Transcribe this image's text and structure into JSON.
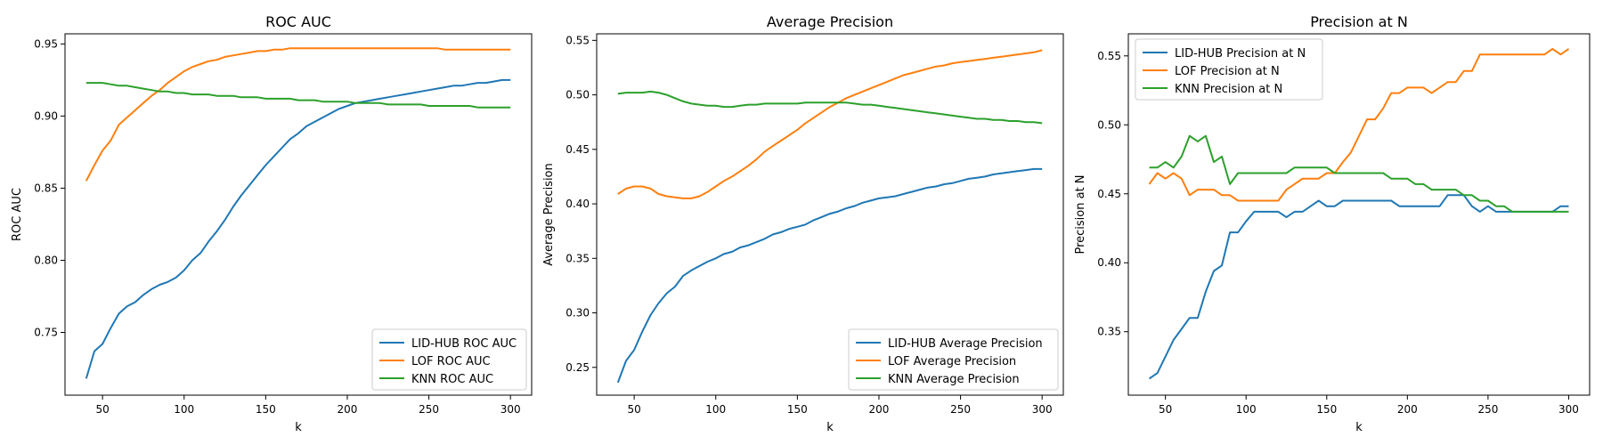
{
  "palette": {
    "lid": "#1f77b4",
    "lof": "#ff7f0e",
    "knn": "#2ca02c"
  },
  "chart_data": [
    {
      "type": "line",
      "title": "ROC AUC",
      "xlabel": "k",
      "ylabel": "ROC AUC",
      "xlim": [
        27,
        313
      ],
      "ylim": [
        0.7065,
        0.957
      ],
      "xticks": [
        50,
        100,
        150,
        200,
        250,
        300
      ],
      "yticks": [
        0.75,
        0.8,
        0.85,
        0.9,
        0.95
      ],
      "tick_format": 2,
      "legend_position": "lower right",
      "x": [
        40,
        45,
        50,
        55,
        60,
        65,
        70,
        75,
        80,
        85,
        90,
        95,
        100,
        105,
        110,
        115,
        120,
        125,
        130,
        135,
        140,
        145,
        150,
        155,
        160,
        165,
        170,
        175,
        180,
        185,
        190,
        195,
        200,
        205,
        210,
        215,
        220,
        225,
        230,
        235,
        240,
        245,
        250,
        255,
        260,
        265,
        270,
        275,
        280,
        285,
        290,
        295,
        300
      ],
      "series": [
        {
          "name": "LID-HUB ROC AUC",
          "color": "lid",
          "values": [
            0.718,
            0.737,
            0.742,
            0.753,
            0.763,
            0.768,
            0.771,
            0.776,
            0.78,
            0.783,
            0.785,
            0.788,
            0.793,
            0.8,
            0.805,
            0.813,
            0.82,
            0.828,
            0.837,
            0.845,
            0.852,
            0.859,
            0.866,
            0.872,
            0.878,
            0.884,
            0.888,
            0.893,
            0.896,
            0.899,
            0.902,
            0.905,
            0.907,
            0.909,
            0.91,
            0.911,
            0.912,
            0.913,
            0.914,
            0.915,
            0.916,
            0.917,
            0.918,
            0.919,
            0.92,
            0.921,
            0.921,
            0.922,
            0.923,
            0.923,
            0.924,
            0.925,
            0.925
          ]
        },
        {
          "name": "LOF ROC AUC",
          "color": "lof",
          "values": [
            0.855,
            0.866,
            0.876,
            0.883,
            0.894,
            0.899,
            0.904,
            0.909,
            0.914,
            0.918,
            0.923,
            0.927,
            0.931,
            0.934,
            0.936,
            0.938,
            0.939,
            0.941,
            0.942,
            0.943,
            0.944,
            0.945,
            0.945,
            0.946,
            0.946,
            0.947,
            0.947,
            0.947,
            0.947,
            0.947,
            0.947,
            0.947,
            0.947,
            0.947,
            0.947,
            0.947,
            0.947,
            0.947,
            0.947,
            0.947,
            0.947,
            0.947,
            0.947,
            0.947,
            0.946,
            0.946,
            0.946,
            0.946,
            0.946,
            0.946,
            0.946,
            0.946,
            0.946
          ]
        },
        {
          "name": "KNN ROC AUC",
          "color": "knn",
          "values": [
            0.923,
            0.923,
            0.923,
            0.922,
            0.921,
            0.921,
            0.92,
            0.919,
            0.918,
            0.917,
            0.917,
            0.916,
            0.916,
            0.915,
            0.915,
            0.915,
            0.914,
            0.914,
            0.914,
            0.913,
            0.913,
            0.913,
            0.912,
            0.912,
            0.912,
            0.912,
            0.911,
            0.911,
            0.911,
            0.91,
            0.91,
            0.91,
            0.91,
            0.909,
            0.909,
            0.909,
            0.909,
            0.908,
            0.908,
            0.908,
            0.908,
            0.908,
            0.907,
            0.907,
            0.907,
            0.907,
            0.907,
            0.907,
            0.906,
            0.906,
            0.906,
            0.906,
            0.906
          ]
        }
      ]
    },
    {
      "type": "line",
      "title": "Average Precision",
      "xlabel": "k",
      "ylabel": "Average Precision",
      "xlim": [
        27,
        313
      ],
      "ylim": [
        0.2245,
        0.556
      ],
      "xticks": [
        50,
        100,
        150,
        200,
        250,
        300
      ],
      "yticks": [
        0.25,
        0.3,
        0.35,
        0.4,
        0.45,
        0.5,
        0.55
      ],
      "tick_format": 2,
      "legend_position": "lower right",
      "x": [
        40,
        45,
        50,
        55,
        60,
        65,
        70,
        75,
        80,
        85,
        90,
        95,
        100,
        105,
        110,
        115,
        120,
        125,
        130,
        135,
        140,
        145,
        150,
        155,
        160,
        165,
        170,
        175,
        180,
        185,
        190,
        195,
        200,
        205,
        210,
        215,
        220,
        225,
        230,
        235,
        240,
        245,
        250,
        255,
        260,
        265,
        270,
        275,
        280,
        285,
        290,
        295,
        300
      ],
      "series": [
        {
          "name": "LID-HUB Average Precision",
          "color": "lid",
          "values": [
            0.236,
            0.256,
            0.266,
            0.283,
            0.298,
            0.309,
            0.318,
            0.324,
            0.334,
            0.339,
            0.343,
            0.347,
            0.35,
            0.354,
            0.356,
            0.36,
            0.362,
            0.365,
            0.368,
            0.372,
            0.374,
            0.377,
            0.379,
            0.381,
            0.385,
            0.388,
            0.391,
            0.393,
            0.396,
            0.398,
            0.401,
            0.403,
            0.405,
            0.406,
            0.407,
            0.409,
            0.411,
            0.413,
            0.415,
            0.416,
            0.418,
            0.419,
            0.421,
            0.423,
            0.424,
            0.425,
            0.427,
            0.428,
            0.429,
            0.43,
            0.431,
            0.432,
            0.432
          ]
        },
        {
          "name": "LOF Average Precision",
          "color": "lof",
          "values": [
            0.409,
            0.414,
            0.416,
            0.416,
            0.414,
            0.409,
            0.407,
            0.406,
            0.405,
            0.405,
            0.407,
            0.411,
            0.416,
            0.421,
            0.425,
            0.43,
            0.435,
            0.441,
            0.448,
            0.453,
            0.458,
            0.463,
            0.468,
            0.474,
            0.479,
            0.484,
            0.489,
            0.493,
            0.497,
            0.5,
            0.503,
            0.506,
            0.509,
            0.512,
            0.515,
            0.518,
            0.52,
            0.522,
            0.524,
            0.526,
            0.527,
            0.529,
            0.53,
            0.531,
            0.532,
            0.533,
            0.534,
            0.535,
            0.536,
            0.537,
            0.538,
            0.539,
            0.541
          ]
        },
        {
          "name": "KNN Average Precision",
          "color": "knn",
          "values": [
            0.501,
            0.502,
            0.502,
            0.502,
            0.503,
            0.502,
            0.5,
            0.497,
            0.494,
            0.492,
            0.491,
            0.49,
            0.49,
            0.489,
            0.489,
            0.49,
            0.491,
            0.491,
            0.492,
            0.492,
            0.492,
            0.492,
            0.492,
            0.493,
            0.493,
            0.493,
            0.493,
            0.493,
            0.493,
            0.492,
            0.491,
            0.491,
            0.49,
            0.489,
            0.488,
            0.487,
            0.486,
            0.485,
            0.484,
            0.483,
            0.482,
            0.481,
            0.48,
            0.479,
            0.478,
            0.478,
            0.477,
            0.477,
            0.476,
            0.476,
            0.475,
            0.475,
            0.474
          ]
        }
      ]
    },
    {
      "type": "line",
      "title": "Precision at N",
      "xlabel": "k",
      "ylabel": "Precision at N",
      "xlim": [
        27,
        313
      ],
      "ylim": [
        0.304,
        0.566
      ],
      "xticks": [
        50,
        100,
        150,
        200,
        250,
        300
      ],
      "yticks": [
        0.35,
        0.4,
        0.45,
        0.5,
        0.55
      ],
      "tick_format": 2,
      "legend_position": "upper left",
      "x": [
        40,
        45,
        50,
        55,
        60,
        65,
        70,
        75,
        80,
        85,
        90,
        95,
        100,
        105,
        110,
        115,
        120,
        125,
        130,
        135,
        140,
        145,
        150,
        155,
        160,
        165,
        170,
        175,
        180,
        185,
        190,
        195,
        200,
        205,
        210,
        215,
        220,
        225,
        230,
        235,
        240,
        245,
        250,
        255,
        260,
        265,
        270,
        275,
        280,
        285,
        290,
        295,
        300
      ],
      "series": [
        {
          "name": "LID-HUB Precision at N",
          "color": "lid",
          "values": [
            0.316,
            0.32,
            0.332,
            0.344,
            0.352,
            0.36,
            0.36,
            0.379,
            0.394,
            0.398,
            0.422,
            0.422,
            0.43,
            0.437,
            0.437,
            0.437,
            0.437,
            0.433,
            0.437,
            0.437,
            0.441,
            0.445,
            0.441,
            0.441,
            0.445,
            0.445,
            0.445,
            0.445,
            0.445,
            0.445,
            0.445,
            0.441,
            0.441,
            0.441,
            0.441,
            0.441,
            0.441,
            0.449,
            0.449,
            0.449,
            0.441,
            0.437,
            0.441,
            0.437,
            0.437,
            0.437,
            0.437,
            0.437,
            0.437,
            0.437,
            0.437,
            0.441,
            0.441
          ]
        },
        {
          "name": "LOF Precision at N",
          "color": "lof",
          "values": [
            0.457,
            0.465,
            0.461,
            0.465,
            0.461,
            0.449,
            0.453,
            0.453,
            0.453,
            0.449,
            0.449,
            0.445,
            0.445,
            0.445,
            0.445,
            0.445,
            0.445,
            0.453,
            0.457,
            0.461,
            0.461,
            0.461,
            0.465,
            0.465,
            0.473,
            0.48,
            0.492,
            0.504,
            0.504,
            0.512,
            0.523,
            0.523,
            0.527,
            0.527,
            0.527,
            0.523,
            0.527,
            0.531,
            0.531,
            0.539,
            0.539,
            0.551,
            0.551,
            0.551,
            0.551,
            0.551,
            0.551,
            0.551,
            0.551,
            0.551,
            0.555,
            0.551,
            0.555
          ]
        },
        {
          "name": "KNN Precision at N",
          "color": "knn",
          "values": [
            0.469,
            0.469,
            0.473,
            0.469,
            0.477,
            0.492,
            0.488,
            0.492,
            0.473,
            0.477,
            0.457,
            0.465,
            0.465,
            0.465,
            0.465,
            0.465,
            0.465,
            0.465,
            0.469,
            0.469,
            0.469,
            0.469,
            0.469,
            0.465,
            0.465,
            0.465,
            0.465,
            0.465,
            0.465,
            0.465,
            0.461,
            0.461,
            0.461,
            0.457,
            0.457,
            0.453,
            0.453,
            0.453,
            0.453,
            0.449,
            0.449,
            0.445,
            0.445,
            0.441,
            0.441,
            0.437,
            0.437,
            0.437,
            0.437,
            0.437,
            0.437,
            0.437,
            0.437
          ]
        }
      ]
    }
  ]
}
